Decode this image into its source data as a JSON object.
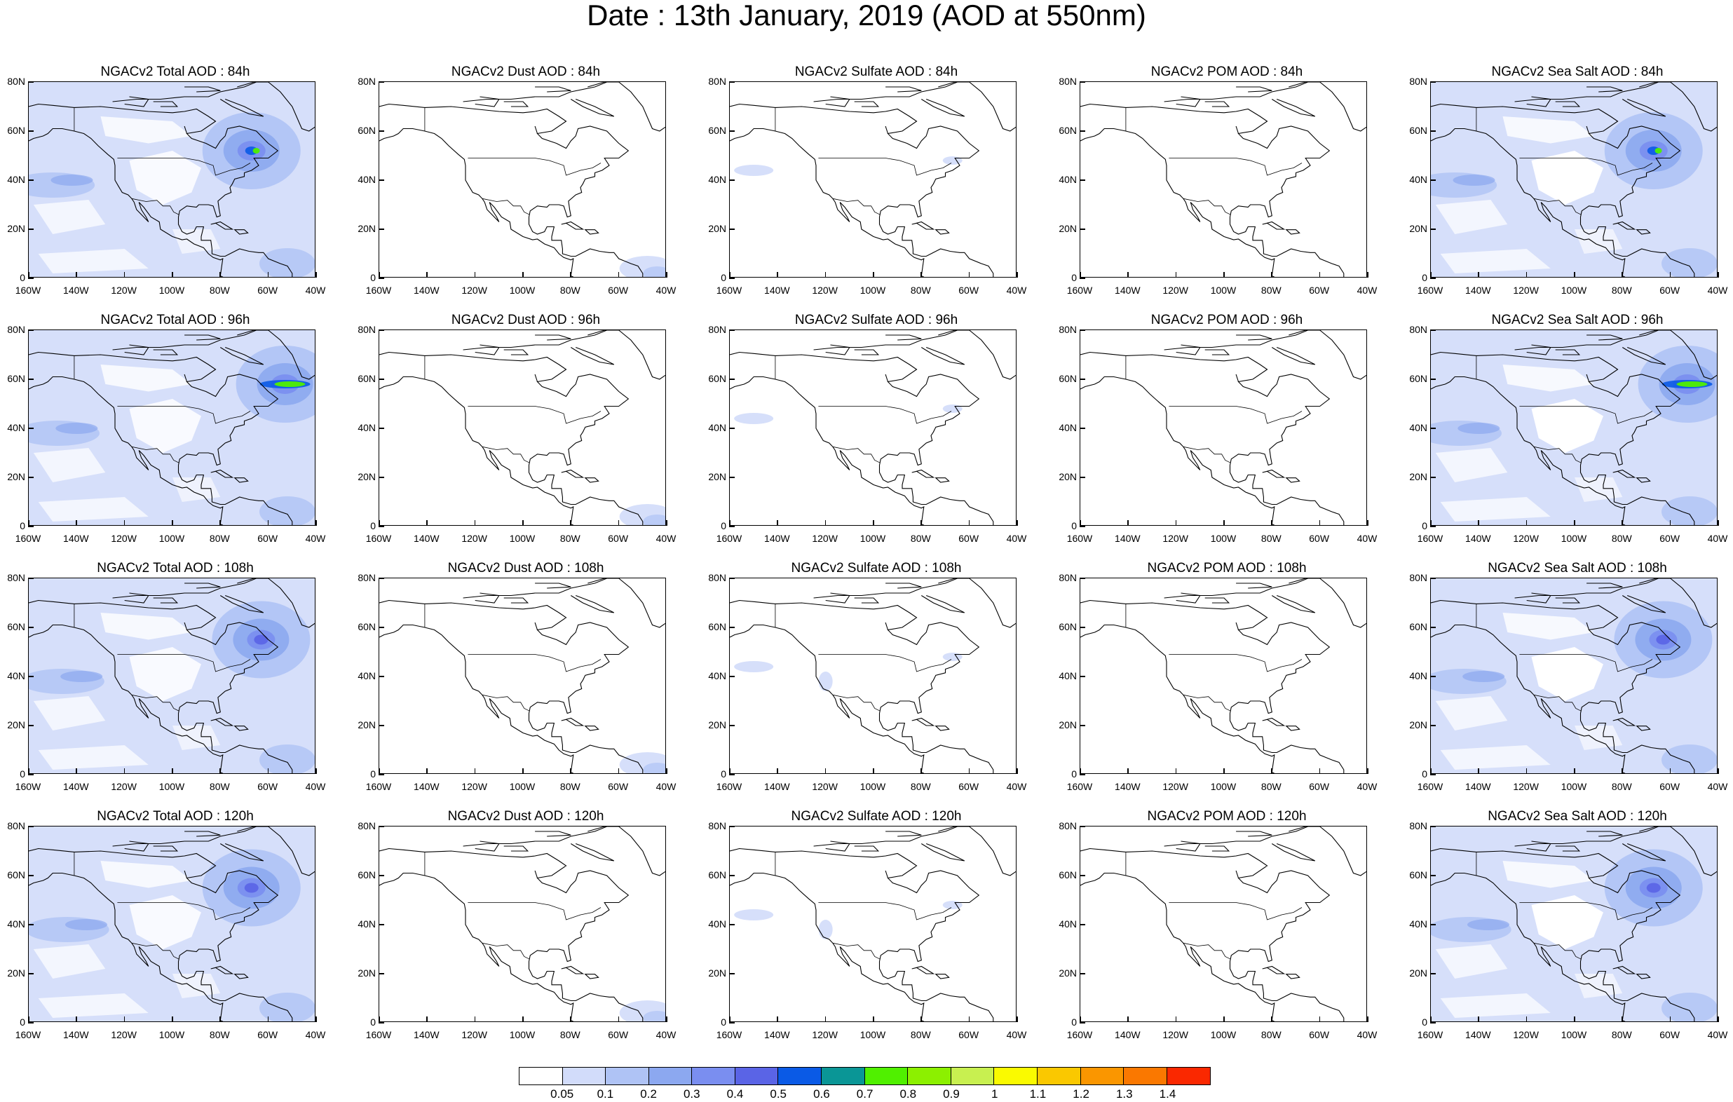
{
  "title": "Date : 13th January, 2019 (AOD at 550nm)",
  "panels": [
    [
      "NGACv2 Total AOD : 84h",
      "NGACv2 Dust AOD : 84h",
      "NGACv2 Sulfate AOD : 84h",
      "NGACv2 POM AOD : 84h",
      "NGACv2 Sea Salt AOD : 84h"
    ],
    [
      "NGACv2 Total AOD : 96h",
      "NGACv2 Dust AOD : 96h",
      "NGACv2 Sulfate AOD : 96h",
      "NGACv2 POM AOD : 96h",
      "NGACv2 Sea Salt AOD : 96h"
    ],
    [
      "NGACv2 Total AOD : 108h",
      "NGACv2 Dust AOD : 108h",
      "NGACv2 Sulfate AOD : 108h",
      "NGACv2 POM AOD : 108h",
      "NGACv2 Sea Salt AOD : 108h"
    ],
    [
      "NGACv2 Total AOD : 120h",
      "NGACv2 Dust AOD : 120h",
      "NGACv2 Sulfate AOD : 120h",
      "NGACv2 POM AOD : 120h",
      "NGACv2 Sea Salt  AOD : 120h"
    ]
  ],
  "y_ticks": [
    "80N",
    "60N",
    "40N",
    "20N",
    "0"
  ],
  "x_ticks": [
    "160W",
    "140W",
    "120W",
    "100W",
    "80W",
    "60W",
    "40W"
  ],
  "colorbar": {
    "labels": [
      "0.05",
      "0.1",
      "0.2",
      "0.3",
      "0.4",
      "0.5",
      "0.6",
      "0.7",
      "0.8",
      "0.9",
      "1",
      "1.1",
      "1.2",
      "1.3",
      "1.4"
    ],
    "colors": [
      "#ffffff",
      "#d2dcfa",
      "#afc3f5",
      "#8ca8f0",
      "#7a8ef0",
      "#5a64e6",
      "#0a5ae6",
      "#0a9696",
      "#50f000",
      "#8cf000",
      "#c8f050",
      "#fafa00",
      "#fac800",
      "#fa9600",
      "#fa7800",
      "#fa2800"
    ]
  },
  "fields": {
    "total": "light blue across most of the domain, blue-green maximum off Newfoundland",
    "dust": "near zero, faint blue near northern South America",
    "sulfate": "mostly near zero with small light patches",
    "pom": "near zero everywhere",
    "seasalt": "light blue over oceans, maximum off Newfoundland"
  }
}
